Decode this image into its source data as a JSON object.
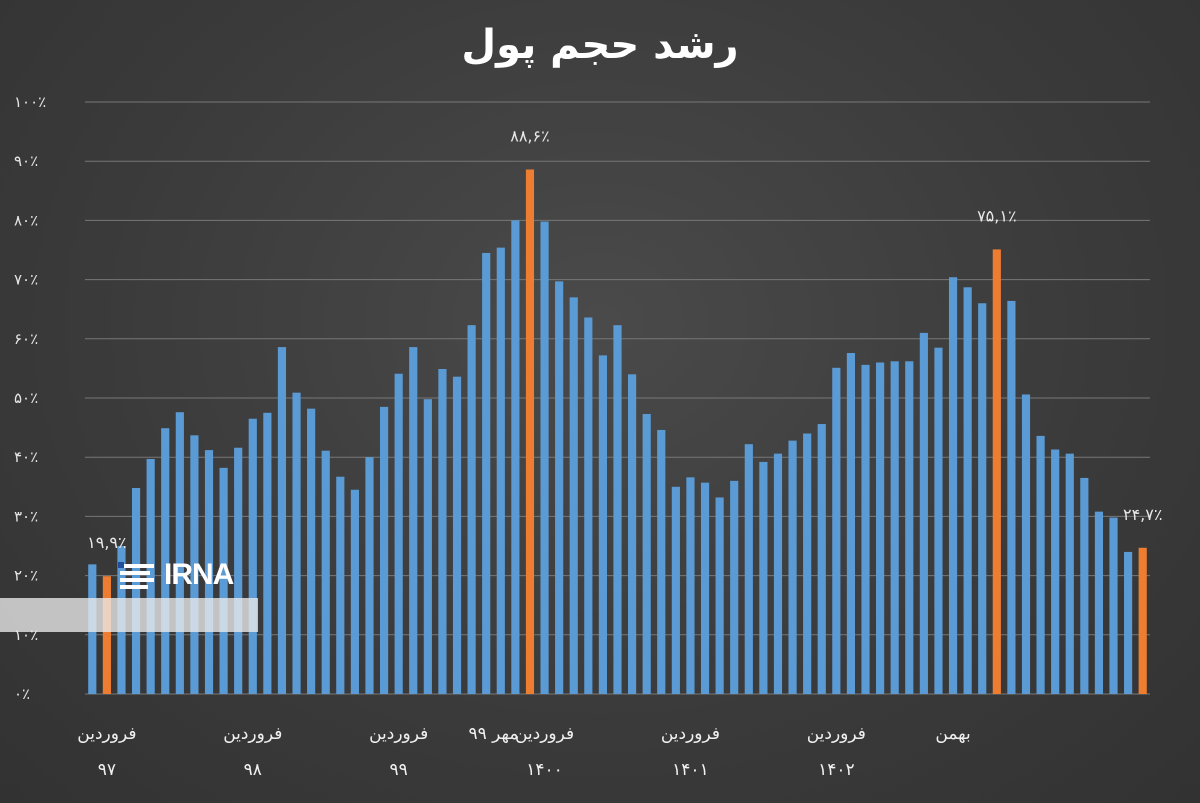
{
  "chart_data": {
    "type": "bar",
    "title": "رشد حجم پول",
    "xlabel": "",
    "ylabel": "",
    "ylim": [
      0,
      100
    ],
    "yticks": [
      "۰٪",
      "۱۰٪",
      "۲۰٪",
      "۳۰٪",
      "۴۰٪",
      "۵۰٪",
      "۶۰٪",
      "۷۰٪",
      "۸۰٪",
      "۹۰٪",
      "۱۰۰٪"
    ],
    "grid": true,
    "legend": "none",
    "colors": {
      "default": "#5b9bd5",
      "highlight": "#ed7d31",
      "grid": "#777777"
    },
    "values": [
      21.9,
      19.9,
      25.0,
      34.8,
      39.7,
      44.9,
      47.6,
      43.7,
      41.2,
      38.2,
      41.6,
      46.5,
      47.5,
      58.6,
      50.9,
      48.2,
      41.1,
      36.7,
      34.5,
      40.0,
      48.5,
      54.1,
      58.6,
      49.8,
      54.9,
      53.6,
      62.3,
      74.5,
      75.4,
      80.0,
      88.6,
      79.8,
      69.7,
      67.0,
      63.6,
      57.2,
      62.3,
      54.0,
      47.3,
      44.6,
      35.0,
      36.6,
      35.7,
      33.2,
      36.0,
      42.2,
      39.2,
      40.6,
      42.8,
      44.0,
      45.6,
      55.1,
      57.6,
      55.6,
      56.0,
      56.2,
      56.2,
      61.0,
      58.5,
      70.4,
      68.7,
      66.0,
      75.1,
      66.4,
      50.6,
      43.6,
      41.3,
      40.6,
      36.5,
      30.8,
      29.8,
      24.0,
      24.7
    ],
    "highlights": [
      1,
      30,
      62,
      72
    ],
    "data_labels": [
      {
        "index": 1,
        "text": "۱۹,۹٪"
      },
      {
        "index": 30,
        "text": "۸۸,۶٪"
      },
      {
        "index": 62,
        "text": "۷۵,۱٪"
      },
      {
        "index": 72,
        "text": "۲۴,۷٪"
      }
    ],
    "x_labels": [
      {
        "index": 1,
        "line1": "فروردین",
        "line2": "۹۷"
      },
      {
        "index": 11,
        "line1": "فروردین",
        "line2": "۹۸"
      },
      {
        "index": 21,
        "line1": "فروردین",
        "line2": "۹۹"
      },
      {
        "index": 27.5,
        "line1": "مهر ۹۹",
        "line2": ""
      },
      {
        "index": 31,
        "line1": "فروردین",
        "line2": "۱۴۰۰"
      },
      {
        "index": 41,
        "line1": "فروردین",
        "line2": "۱۴۰۱"
      },
      {
        "index": 51,
        "line1": "فروردین",
        "line2": "۱۴۰۲"
      },
      {
        "index": 59,
        "line1": "بهمن",
        "line2": ""
      }
    ]
  },
  "watermark": {
    "logo_text": "IRNA"
  }
}
